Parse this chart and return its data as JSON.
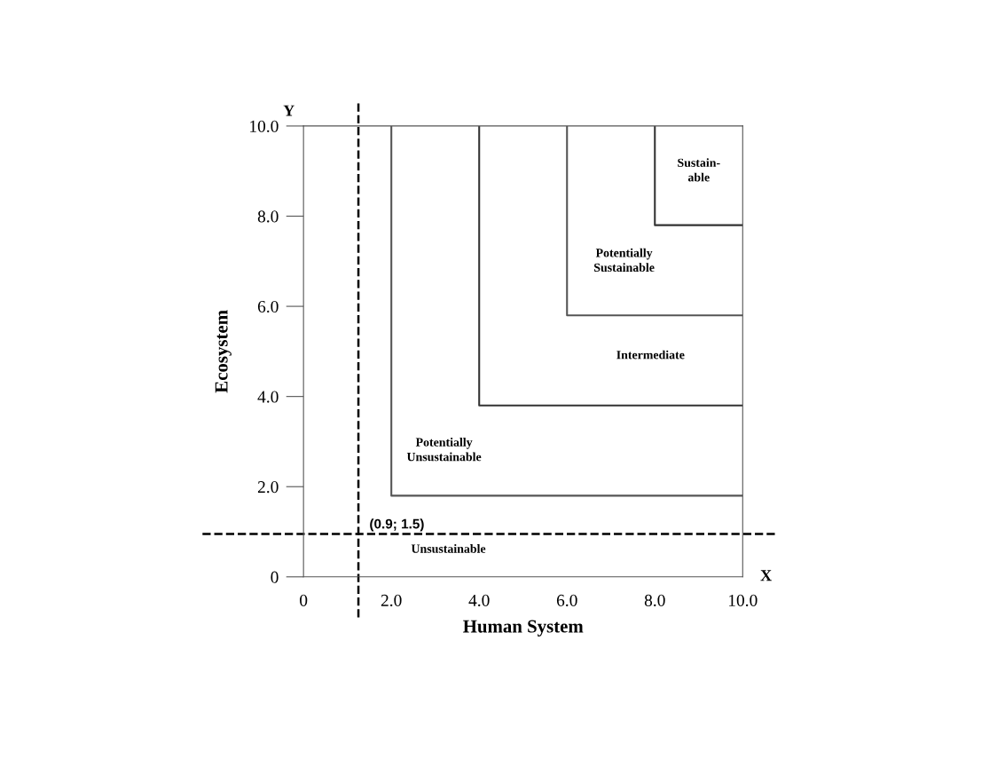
{
  "chart_data": {
    "type": "line",
    "xlabel": "Human System",
    "ylabel": "Ecosystem",
    "xlim": [
      0,
      10
    ],
    "ylim": [
      0,
      10
    ],
    "xticks": [
      0,
      {
        "value": 2,
        "label": "2.0"
      },
      {
        "value": 4,
        "label": "4.0"
      },
      {
        "value": 6,
        "label": "6.0"
      },
      {
        "value": 8,
        "label": "8.0"
      },
      {
        "value": 10,
        "label": "10.0"
      }
    ],
    "yticks": [
      0,
      {
        "value": 2,
        "label": "2.0"
      },
      {
        "value": 4,
        "label": "4.0"
      },
      {
        "value": 6,
        "label": "6.0"
      },
      {
        "value": 8,
        "label": "8.0"
      },
      {
        "value": 10,
        "label": "10.0"
      }
    ],
    "grid": false,
    "legend": false,
    "marker": "none",
    "line_style": "solid",
    "series": [
      {
        "color": "#555555",
        "x": [
          2,
          2,
          10
        ],
        "values": [
          10,
          1.8,
          1.8
        ]
      },
      {
        "color": "#333333",
        "x": [
          4,
          4,
          10
        ],
        "values": [
          10,
          3.8,
          3.8
        ]
      },
      {
        "color": "#555555",
        "x": [
          6,
          6,
          10
        ],
        "values": [
          10,
          5.8,
          5.8
        ]
      },
      {
        "color": "#333333",
        "x": [
          8,
          8,
          10
        ],
        "values": [
          10,
          7.8,
          7.8
        ]
      }
    ],
    "ref_lines": [
      {
        "axis": "x",
        "value": 1.25,
        "color": "#000000",
        "line_style": "dashed"
      },
      {
        "axis": "y",
        "value": 0.95,
        "color": "#000000",
        "line_style": "dashed"
      }
    ],
    "annotations": [
      "Y",
      "X",
      "Sustain-\nable",
      "Potentially\nSustainable",
      "Intermediate",
      "Potentially\nUnsustainable",
      "Unsustainable",
      "(0.9; 1.5)"
    ]
  }
}
